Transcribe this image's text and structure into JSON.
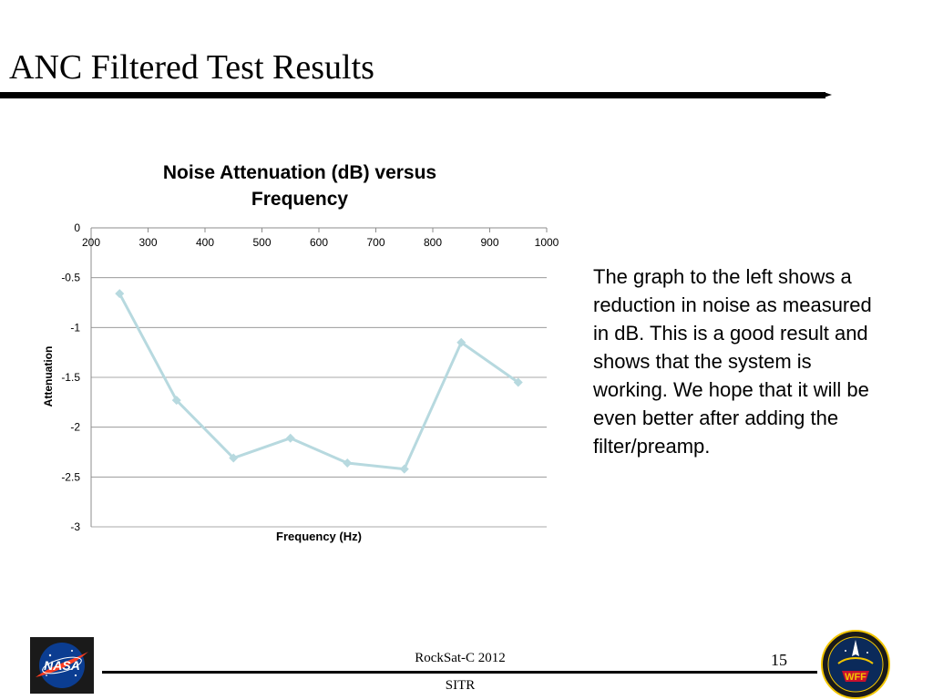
{
  "slide": {
    "title": "ANC Filtered Test Results",
    "body_text": "The graph to the left shows a reduction in noise as measured in dB.  This is a good result and shows that the system is working.  We hope that it will be even better after adding the filter/preamp."
  },
  "footer": {
    "conference": "RockSat-C 2012",
    "organization": "SITR",
    "page_number": "15",
    "nasa_logo_text": "NASA",
    "wff_logo_text": "WFF"
  },
  "colors": {
    "series_line": "#b7d9df",
    "gridline": "#8c8c8c",
    "nasa_blue": "#0b3d91",
    "nasa_red": "#fc3d21",
    "wff_yellow": "#f2c500"
  },
  "chart_data": {
    "type": "line",
    "title_lines": [
      "Noise Attenuation (dB) versus",
      "Frequency"
    ],
    "xlabel": "Frequency (Hz)",
    "ylabel": "Attenuation",
    "xlim": [
      200,
      1000
    ],
    "ylim": [
      -3,
      0
    ],
    "x_ticks": [
      200,
      300,
      400,
      500,
      600,
      700,
      800,
      900,
      1000
    ],
    "x_tick_labels": [
      "200",
      "300",
      "400",
      "500",
      "600",
      "700",
      "800",
      "900",
      "1000"
    ],
    "y_ticks": [
      0,
      -0.5,
      -1,
      -1.5,
      -2,
      -2.5,
      -3
    ],
    "y_tick_labels": [
      "0",
      "-0.5",
      "-1",
      "-1.5",
      "-2",
      "-2.5",
      "-3"
    ],
    "x_axis_position": "top",
    "grid": "horizontal",
    "legend": "none",
    "series": [
      {
        "x": [
          250,
          350,
          450,
          550,
          650,
          750,
          850,
          950
        ],
        "y": [
          -0.66,
          -1.73,
          -2.31,
          -2.11,
          -2.36,
          -2.42,
          -1.15,
          -1.55
        ]
      }
    ]
  }
}
